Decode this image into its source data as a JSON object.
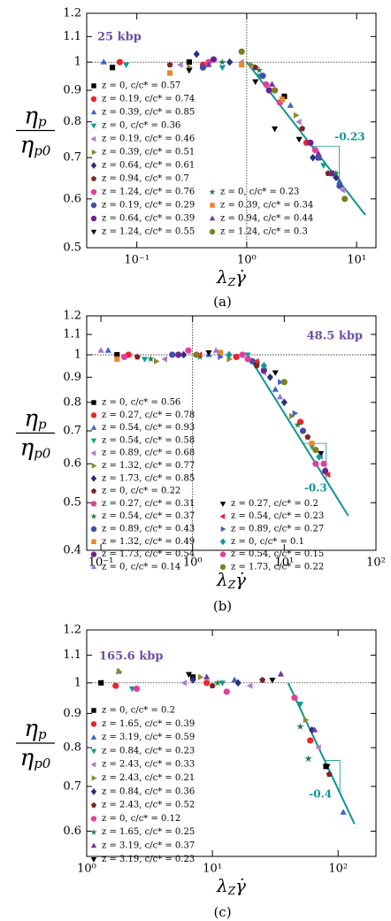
{
  "chart_data": [
    {
      "type": "scatter",
      "annotation": "25 kbp",
      "caption": "(a)",
      "xscale": "log",
      "yscale": "log",
      "ylabel": {
        "numerator": [
          "η",
          "p"
        ],
        "denominator": [
          "η",
          "p0"
        ]
      },
      "xlabel": [
        "λ",
        "Z",
        "γ̇"
      ],
      "xlim": [
        0.035,
        15
      ],
      "ylim": [
        0.5,
        1.2
      ],
      "xticks": [
        {
          "value": 0.1,
          "label": "10⁻¹"
        },
        {
          "value": 1,
          "label": "10⁰"
        },
        {
          "value": 10,
          "label": "10¹"
        }
      ],
      "yticks": [
        0.5,
        0.6,
        0.7,
        0.8,
        0.9,
        1,
        1.1,
        1.2
      ],
      "hline": 1,
      "vline": 1,
      "fit": {
        "x": [
          1,
          12
        ],
        "y": [
          1,
          0.565
        ],
        "color": "#0e9494",
        "label": "-0.23"
      },
      "series": [
        {
          "name": "z = 0, c/c* = 0.57",
          "color": "#000000",
          "marker": "square",
          "x": [
            0.06,
            0.3,
            2.2,
            4.5
          ],
          "values": [
            0.98,
            1.0,
            0.88,
            0.7
          ]
        },
        {
          "name": "z = 0.19, c/c* = 0.74",
          "color": "#e8262b",
          "marker": "circle",
          "x": [
            0.07,
            0.4,
            1.8,
            3.5
          ],
          "values": [
            1.0,
            0.99,
            0.9,
            0.74
          ]
        },
        {
          "name": "z = 0.39, c/c* = 0.85",
          "color": "#3c62c8",
          "marker": "tri-up",
          "x": [
            0.05,
            0.5,
            2.5,
            7
          ],
          "values": [
            1.0,
            1.01,
            0.85,
            0.64
          ]
        },
        {
          "name": "z = 0, c/c* = 0.36",
          "color": "#0f9a9a",
          "marker": "tri-down",
          "x": [
            0.08,
            0.6,
            1.3,
            5
          ],
          "values": [
            0.99,
            0.98,
            0.95,
            0.68
          ]
        },
        {
          "name": "z = 0.19, c/c* = 0.46",
          "color": "#b277c8",
          "marker": "tri-left",
          "x": [
            0.25,
            0.9,
            3,
            7.5
          ],
          "values": [
            0.99,
            1.0,
            0.8,
            0.62
          ]
        },
        {
          "name": "z = 0.39, c/c* = 0.51",
          "color": "#8c8a2a",
          "marker": "tri-right",
          "x": [
            0.3,
            1.1,
            2.8,
            6
          ],
          "values": [
            0.98,
            0.99,
            0.82,
            0.66
          ]
        },
        {
          "name": "z = 0.64, c/c* = 0.61",
          "color": "#28307e",
          "marker": "diamond",
          "x": [
            0.35,
            0.7,
            4,
            6.5
          ],
          "values": [
            1.03,
            1.0,
            0.7,
            0.65
          ]
        },
        {
          "name": "z = 0.94, c/c* = 0.7",
          "color": "#7e2424",
          "marker": "pentagon",
          "x": [
            0.2,
            1.2,
            3.2,
            5.5
          ],
          "values": [
            0.99,
            0.98,
            0.78,
            0.66
          ]
        },
        {
          "name": "z = 1.24, c/c* = 0.76",
          "color": "#e43d9e",
          "marker": "circle",
          "x": [
            0.45,
            1.5,
            2,
            4.2
          ],
          "values": [
            1.0,
            0.92,
            0.86,
            0.72
          ]
        },
        {
          "name": "z = 0.19, c/c* = 0.29",
          "color": "#3f4fae",
          "marker": "circle",
          "x": [
            0.4,
            1.4,
            4.5,
            7
          ],
          "values": [
            0.98,
            0.95,
            0.7,
            0.63
          ]
        },
        {
          "name": "z = 0.64, c/c* = 0.39",
          "color": "#6e2290",
          "marker": "circle",
          "x": [
            0.5,
            1.6,
            3.8,
            6
          ],
          "values": [
            1.01,
            0.9,
            0.74,
            0.66
          ]
        },
        {
          "name": "z = 1.24, c/c* = 0.55",
          "color": "#000000",
          "marker": "tri-down",
          "x": [
            0.3,
            1.2,
            1.8,
            3
          ],
          "values": [
            0.97,
            0.93,
            0.78,
            0.75
          ]
        },
        {
          "name": "z = 0, c/c* = 0.23",
          "color": "#1f7f42",
          "marker": "star",
          "x": [
            0.6,
            1.3,
            6.5
          ],
          "values": [
            1.0,
            0.97,
            0.66
          ]
        },
        {
          "name": "z = 0.39, c/c* = 0.34",
          "color": "#f08424",
          "marker": "square",
          "x": [
            0.2,
            0.9,
            2.1
          ],
          "values": [
            0.96,
            0.99,
            0.87
          ]
        },
        {
          "name": "z = 0.94, c/c* = 0.44",
          "color": "#7434a6",
          "marker": "tri-up",
          "x": [
            0.45,
            1.7,
            4.5
          ],
          "values": [
            0.99,
            0.92,
            0.71
          ]
        },
        {
          "name": "z = 1.24, c/c* = 0.3",
          "color": "#7e7e22",
          "marker": "circle",
          "x": [
            0.9,
            1.8,
            7.8
          ],
          "values": [
            1.04,
            0.9,
            0.6
          ]
        }
      ]
    },
    {
      "type": "scatter",
      "annotation": "48.5 kbp",
      "caption": "(b)",
      "xscale": "log",
      "yscale": "log",
      "ylabel": {
        "numerator": [
          "η",
          "p"
        ],
        "denominator": [
          "η",
          "p0"
        ]
      },
      "xlabel": [
        "λ",
        "Z",
        "γ̇"
      ],
      "xlim": [
        0.07,
        100
      ],
      "ylim": [
        0.4,
        1.2
      ],
      "xticks": [
        {
          "value": 0.1,
          "label": "10⁻¹"
        },
        {
          "value": 1,
          "label": "10⁰"
        },
        {
          "value": 10,
          "label": "10¹"
        },
        {
          "value": 100,
          "label": "10²"
        }
      ],
      "yticks": [
        0.4,
        0.5,
        0.6,
        0.7,
        0.8,
        0.9,
        1,
        1.1,
        1.2
      ],
      "hline": 1,
      "vline": 1,
      "fit": {
        "x": [
          4,
          50
        ],
        "y": [
          1,
          0.47
        ],
        "color": "#0e9494",
        "label": "-0.3"
      },
      "series": [
        {
          "name": "z = 0, c/c* = 0.56",
          "color": "#000000",
          "marker": "square",
          "x": [
            0.15,
            2,
            5
          ],
          "values": [
            1.0,
            1.01,
            0.96
          ]
        },
        {
          "name": "z = 0.27, c/c* = 0.78",
          "color": "#e8262b",
          "marker": "circle",
          "x": [
            0.2,
            3,
            15
          ],
          "values": [
            1.0,
            0.99,
            0.73
          ]
        },
        {
          "name": "z = 0.54, c/c* = 0.93",
          "color": "#3c62c8",
          "marker": "tri-up",
          "x": [
            0.12,
            1.5,
            8
          ],
          "values": [
            1.02,
            1.0,
            0.85
          ]
        },
        {
          "name": "z = 0.54, c/c* = 0.58",
          "color": "#0f9a9a",
          "marker": "tri-down",
          "x": [
            0.3,
            4,
            20
          ],
          "values": [
            0.98,
            1.0,
            0.65
          ]
        },
        {
          "name": "z = 0.89, c/c* = 0.68",
          "color": "#b277c8",
          "marker": "tri-left",
          "x": [
            0.5,
            6,
            25
          ],
          "values": [
            0.98,
            0.92,
            0.62
          ]
        },
        {
          "name": "z = 1.32, c/c* = 0.77",
          "color": "#8c8a2a",
          "marker": "tri-right",
          "x": [
            0.4,
            2.5,
            12
          ],
          "values": [
            0.97,
            0.98,
            0.75
          ]
        },
        {
          "name": "z = 1.73, c/c* = 0.85",
          "color": "#28307e",
          "marker": "diamond",
          "x": [
            0.8,
            7,
            10
          ],
          "values": [
            1.0,
            0.9,
            0.8
          ]
        },
        {
          "name": "z = 0, c/c* = 0.22",
          "color": "#7e2424",
          "marker": "pentagon",
          "x": [
            0.25,
            5,
            18
          ],
          "values": [
            0.99,
            0.95,
            0.68
          ]
        },
        {
          "name": "z = 0.27, c/c* = 0.31",
          "color": "#e43d9e",
          "marker": "circle",
          "x": [
            0.18,
            3.5,
            22
          ],
          "values": [
            0.99,
            1.0,
            0.6
          ]
        },
        {
          "name": "z = 0.54, c/c* = 0.37",
          "color": "#1f7f42",
          "marker": "star",
          "x": [
            0.35,
            1.2,
            14
          ],
          "values": [
            0.98,
            0.99,
            0.72
          ]
        },
        {
          "name": "z = 0.89, c/c* = 0.43",
          "color": "#3f4fae",
          "marker": "circle",
          "x": [
            0.6,
            4.5,
            16
          ],
          "values": [
            1.0,
            0.97,
            0.7
          ]
        },
        {
          "name": "z = 1.32, c/c* = 0.49",
          "color": "#f08424",
          "marker": "square",
          "x": [
            0.15,
            2,
            20
          ],
          "values": [
            0.98,
            1.01,
            0.66
          ]
        },
        {
          "name": "z = 1.73, c/c* = 0.54",
          "color": "#6e2290",
          "marker": "circle",
          "x": [
            0.7,
            6,
            28
          ],
          "values": [
            1.0,
            0.93,
            0.58
          ]
        },
        {
          "name": "z = 0, c/c* = 0.14",
          "color": "#9a78d0",
          "marker": "tri-up",
          "x": [
            0.1,
            1.8,
            9
          ],
          "values": [
            1.02,
            1.02,
            0.82
          ]
        },
        {
          "name": "z = 0.27, c/c* = 0.2",
          "color": "#000000",
          "marker": "tri-down",
          "x": [
            1.5,
            8,
            25
          ],
          "values": [
            1.01,
            0.92,
            0.63
          ]
        },
        {
          "name": "z = 0.54, c/c* = 0.23",
          "color": "#e8262b",
          "marker": "tri-left",
          "x": [
            1.2,
            5,
            30
          ],
          "values": [
            1.0,
            0.97,
            0.57
          ]
        },
        {
          "name": "z = 0.89, c/c* = 0.27",
          "color": "#3c62c8",
          "marker": "tri-right",
          "x": [
            2,
            9,
            13
          ],
          "values": [
            0.99,
            0.88,
            0.76
          ]
        },
        {
          "name": "z = 0, c/c* = 0.1",
          "color": "#0f9a9a",
          "marker": "diamond",
          "x": [
            2.5,
            6,
            24
          ],
          "values": [
            1.0,
            0.95,
            0.62
          ]
        },
        {
          "name": "z = 0.54, c/c* = 0.15",
          "color": "#e43d9e",
          "marker": "circle",
          "x": [
            0.9,
            4,
            27
          ],
          "values": [
            1.02,
            0.98,
            0.6
          ]
        },
        {
          "name": "z = 1.73, c/c* = 0.22",
          "color": "#7e7e22",
          "marker": "circle",
          "x": [
            1.1,
            10,
            22
          ],
          "values": [
            1.0,
            0.88,
            0.64
          ]
        }
      ]
    },
    {
      "type": "scatter",
      "annotation": "165.6 kbp",
      "caption": "(c)",
      "xscale": "log",
      "yscale": "log",
      "ylabel": {
        "numerator": [
          "η",
          "p"
        ],
        "denominator": [
          "η",
          "p0"
        ]
      },
      "xlabel": [
        "λ",
        "Z",
        "γ̇"
      ],
      "xlim": [
        1,
        200
      ],
      "ylim": [
        0.55,
        1.2
      ],
      "xticks": [
        {
          "value": 1,
          "label": "10⁰"
        },
        {
          "value": 10,
          "label": "10¹"
        },
        {
          "value": 100,
          "label": "10²"
        }
      ],
      "yticks": [
        0.6,
        0.7,
        0.8,
        0.9,
        1,
        1.1,
        1.2
      ],
      "hline": 1,
      "fit": {
        "x": [
          40,
          135
        ],
        "y": [
          1,
          0.615
        ],
        "color": "#0e9494",
        "label": "-0.4"
      },
      "series": [
        {
          "name": "z = 0, c/c* = 0.2",
          "color": "#000000",
          "marker": "square",
          "x": [
            1.3,
            7,
            80
          ],
          "values": [
            1.0,
            1.02,
            0.75
          ]
        },
        {
          "name": "z = 1.65, c/c* = 0.39",
          "color": "#e8262b",
          "marker": "circle",
          "x": [
            1.7,
            9,
            60
          ],
          "values": [
            0.99,
            1.0,
            0.82
          ]
        },
        {
          "name": "z = 3.19, c/c* = 0.59",
          "color": "#3c62c8",
          "marker": "tri-up",
          "x": [
            1.8,
            15,
            110
          ],
          "values": [
            1.04,
            1.01,
            0.64
          ]
        },
        {
          "name": "z = 0.84, c/c* = 0.23",
          "color": "#0f9a9a",
          "marker": "tri-down",
          "x": [
            2.3,
            12,
            50
          ],
          "values": [
            0.98,
            1.0,
            0.93
          ]
        },
        {
          "name": "z = 2.43, c/c* = 0.33",
          "color": "#b277c8",
          "marker": "tri-left",
          "x": [
            6,
            20,
            70
          ],
          "values": [
            1.0,
            0.99,
            0.8
          ]
        },
        {
          "name": "z = 2.43, c/c* = 0.21",
          "color": "#8c8a2a",
          "marker": "tri-right",
          "x": [
            1.8,
            8,
            55
          ],
          "values": [
            1.04,
            1.02,
            0.88
          ]
        },
        {
          "name": "z = 0.84, c/c* = 0.36",
          "color": "#28307e",
          "marker": "diamond",
          "x": [
            7,
            16,
            62
          ],
          "values": [
            1.01,
            1.0,
            0.85
          ]
        },
        {
          "name": "z = 2.43, c/c* = 0.52",
          "color": "#7e2424",
          "marker": "pentagon",
          "x": [
            10,
            25,
            85
          ],
          "values": [
            0.99,
            1.01,
            0.73
          ]
        },
        {
          "name": "z = 0, c/c* = 0.12",
          "color": "#e43d9e",
          "marker": "circle",
          "x": [
            2.5,
            13,
            45
          ],
          "values": [
            0.98,
            0.97,
            0.95
          ]
        },
        {
          "name": "z = 1.65, c/c* = 0.25",
          "color": "#1f7f42",
          "marker": "star",
          "x": [
            11,
            50,
            58
          ],
          "values": [
            1.0,
            0.86,
            0.77
          ]
        },
        {
          "name": "z = 3.19, c/c* = 0.37",
          "color": "#7434a6",
          "marker": "tri-up",
          "x": [
            9,
            35,
            65
          ],
          "values": [
            1.02,
            1.03,
            0.85
          ]
        },
        {
          "name": "z = 3.19, c/c* = 0.23",
          "color": "#000000",
          "marker": "tri-down",
          "x": [
            6.5,
            30,
            82
          ],
          "values": [
            1.03,
            1.01,
            0.75
          ]
        }
      ]
    }
  ]
}
